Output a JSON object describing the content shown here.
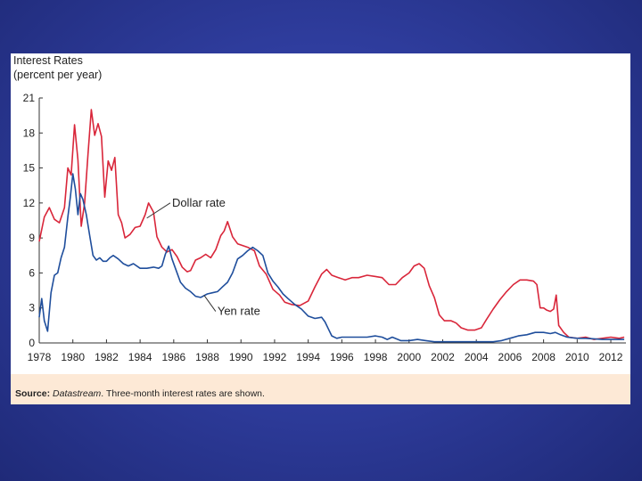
{
  "chart_data": {
    "type": "line",
    "title_lines": [
      "Interest Rates",
      "(percent per year)"
    ],
    "xlim": [
      1978,
      2012.9
    ],
    "ylim": [
      0,
      21
    ],
    "x_ticks": [
      1978,
      1980,
      1982,
      1984,
      1986,
      1988,
      1990,
      1992,
      1994,
      1996,
      1998,
      2000,
      2002,
      2004,
      2006,
      2008,
      2010,
      2012
    ],
    "y_ticks": [
      0,
      3,
      6,
      9,
      12,
      15,
      18,
      21
    ],
    "series": [
      {
        "name": "Dollar rate",
        "color": "#d9263a",
        "points": [
          [
            1978.0,
            8.7
          ],
          [
            1978.3,
            10.8
          ],
          [
            1978.6,
            11.6
          ],
          [
            1978.9,
            10.6
          ],
          [
            1979.2,
            10.3
          ],
          [
            1979.5,
            11.6
          ],
          [
            1979.7,
            15.0
          ],
          [
            1979.9,
            14.4
          ],
          [
            1980.1,
            18.7
          ],
          [
            1980.3,
            15.7
          ],
          [
            1980.5,
            10.0
          ],
          [
            1980.7,
            12.0
          ],
          [
            1980.9,
            16.2
          ],
          [
            1981.1,
            20.0
          ],
          [
            1981.3,
            17.8
          ],
          [
            1981.5,
            18.8
          ],
          [
            1981.7,
            17.7
          ],
          [
            1981.9,
            12.5
          ],
          [
            1982.1,
            15.6
          ],
          [
            1982.3,
            14.8
          ],
          [
            1982.5,
            15.9
          ],
          [
            1982.7,
            11.0
          ],
          [
            1982.9,
            10.3
          ],
          [
            1983.1,
            9.0
          ],
          [
            1983.4,
            9.3
          ],
          [
            1983.7,
            9.9
          ],
          [
            1984.0,
            10.0
          ],
          [
            1984.3,
            11.0
          ],
          [
            1984.5,
            12.0
          ],
          [
            1984.8,
            11.2
          ],
          [
            1985.0,
            9.1
          ],
          [
            1985.3,
            8.2
          ],
          [
            1985.6,
            7.8
          ],
          [
            1985.9,
            8.0
          ],
          [
            1986.2,
            7.4
          ],
          [
            1986.5,
            6.5
          ],
          [
            1986.8,
            6.1
          ],
          [
            1987.0,
            6.2
          ],
          [
            1987.3,
            7.1
          ],
          [
            1987.6,
            7.3
          ],
          [
            1987.9,
            7.6
          ],
          [
            1988.2,
            7.3
          ],
          [
            1988.5,
            8.0
          ],
          [
            1988.8,
            9.2
          ],
          [
            1989.0,
            9.6
          ],
          [
            1989.2,
            10.4
          ],
          [
            1989.5,
            9.1
          ],
          [
            1989.8,
            8.5
          ],
          [
            1990.0,
            8.4
          ],
          [
            1990.4,
            8.2
          ],
          [
            1990.8,
            7.9
          ],
          [
            1991.1,
            6.6
          ],
          [
            1991.5,
            5.9
          ],
          [
            1991.9,
            4.6
          ],
          [
            1992.3,
            4.1
          ],
          [
            1992.6,
            3.5
          ],
          [
            1993.0,
            3.3
          ],
          [
            1993.5,
            3.2
          ],
          [
            1994.0,
            3.6
          ],
          [
            1994.4,
            4.8
          ],
          [
            1994.8,
            5.9
          ],
          [
            1995.1,
            6.3
          ],
          [
            1995.4,
            5.8
          ],
          [
            1995.8,
            5.6
          ],
          [
            1996.2,
            5.4
          ],
          [
            1996.6,
            5.6
          ],
          [
            1997.0,
            5.6
          ],
          [
            1997.5,
            5.8
          ],
          [
            1998.0,
            5.7
          ],
          [
            1998.4,
            5.6
          ],
          [
            1998.8,
            5.0
          ],
          [
            1999.2,
            5.0
          ],
          [
            1999.6,
            5.6
          ],
          [
            2000.0,
            6.0
          ],
          [
            2000.3,
            6.6
          ],
          [
            2000.6,
            6.8
          ],
          [
            2000.9,
            6.4
          ],
          [
            2001.2,
            4.9
          ],
          [
            2001.5,
            3.9
          ],
          [
            2001.8,
            2.4
          ],
          [
            2002.1,
            1.9
          ],
          [
            2002.5,
            1.9
          ],
          [
            2002.8,
            1.7
          ],
          [
            2003.1,
            1.3
          ],
          [
            2003.5,
            1.1
          ],
          [
            2003.9,
            1.1
          ],
          [
            2004.3,
            1.3
          ],
          [
            2004.6,
            2.0
          ],
          [
            2005.0,
            2.9
          ],
          [
            2005.4,
            3.7
          ],
          [
            2005.8,
            4.4
          ],
          [
            2006.2,
            5.0
          ],
          [
            2006.6,
            5.4
          ],
          [
            2007.0,
            5.4
          ],
          [
            2007.4,
            5.3
          ],
          [
            2007.6,
            5.0
          ],
          [
            2007.8,
            3.0
          ],
          [
            2008.0,
            3.0
          ],
          [
            2008.2,
            2.8
          ],
          [
            2008.4,
            2.7
          ],
          [
            2008.6,
            2.9
          ],
          [
            2008.75,
            4.1
          ],
          [
            2008.9,
            1.5
          ],
          [
            2009.2,
            0.9
          ],
          [
            2009.5,
            0.5
          ],
          [
            2010.0,
            0.4
          ],
          [
            2010.5,
            0.5
          ],
          [
            2011.0,
            0.3
          ],
          [
            2011.5,
            0.4
          ],
          [
            2012.0,
            0.5
          ],
          [
            2012.5,
            0.4
          ],
          [
            2012.8,
            0.5
          ]
        ]
      },
      {
        "name": "Yen rate",
        "color": "#1f4e9c",
        "points": [
          [
            1978.0,
            2.2
          ],
          [
            1978.15,
            3.8
          ],
          [
            1978.3,
            1.9
          ],
          [
            1978.5,
            1.0
          ],
          [
            1978.7,
            4.3
          ],
          [
            1978.9,
            5.8
          ],
          [
            1979.1,
            6.0
          ],
          [
            1979.3,
            7.3
          ],
          [
            1979.5,
            8.2
          ],
          [
            1979.7,
            10.8
          ],
          [
            1979.85,
            12.5
          ],
          [
            1980.0,
            14.5
          ],
          [
            1980.15,
            13.2
          ],
          [
            1980.3,
            11.0
          ],
          [
            1980.45,
            12.8
          ],
          [
            1980.6,
            12.3
          ],
          [
            1980.8,
            11.0
          ],
          [
            1981.0,
            9.2
          ],
          [
            1981.2,
            7.5
          ],
          [
            1981.4,
            7.1
          ],
          [
            1981.6,
            7.3
          ],
          [
            1981.8,
            7.0
          ],
          [
            1982.0,
            7.0
          ],
          [
            1982.2,
            7.3
          ],
          [
            1982.4,
            7.5
          ],
          [
            1982.7,
            7.2
          ],
          [
            1983.0,
            6.8
          ],
          [
            1983.3,
            6.6
          ],
          [
            1983.6,
            6.8
          ],
          [
            1984.0,
            6.4
          ],
          [
            1984.4,
            6.4
          ],
          [
            1984.8,
            6.5
          ],
          [
            1985.1,
            6.4
          ],
          [
            1985.3,
            6.6
          ],
          [
            1985.5,
            7.6
          ],
          [
            1985.7,
            8.3
          ],
          [
            1985.9,
            7.2
          ],
          [
            1986.1,
            6.4
          ],
          [
            1986.4,
            5.2
          ],
          [
            1986.7,
            4.7
          ],
          [
            1987.0,
            4.4
          ],
          [
            1987.3,
            4.0
          ],
          [
            1987.6,
            3.9
          ],
          [
            1988.0,
            4.2
          ],
          [
            1988.3,
            4.3
          ],
          [
            1988.6,
            4.4
          ],
          [
            1988.9,
            4.8
          ],
          [
            1989.2,
            5.2
          ],
          [
            1989.5,
            6.0
          ],
          [
            1989.8,
            7.2
          ],
          [
            1990.1,
            7.5
          ],
          [
            1990.4,
            7.9
          ],
          [
            1990.7,
            8.2
          ],
          [
            1991.0,
            7.9
          ],
          [
            1991.3,
            7.5
          ],
          [
            1991.6,
            6.0
          ],
          [
            1991.9,
            5.3
          ],
          [
            1992.2,
            4.8
          ],
          [
            1992.5,
            4.2
          ],
          [
            1992.8,
            3.8
          ],
          [
            1993.2,
            3.3
          ],
          [
            1993.6,
            2.9
          ],
          [
            1994.0,
            2.3
          ],
          [
            1994.4,
            2.1
          ],
          [
            1994.8,
            2.2
          ],
          [
            1995.0,
            1.8
          ],
          [
            1995.2,
            1.2
          ],
          [
            1995.4,
            0.6
          ],
          [
            1995.7,
            0.4
          ],
          [
            1996.0,
            0.5
          ],
          [
            1996.5,
            0.5
          ],
          [
            1997.0,
            0.5
          ],
          [
            1997.5,
            0.5
          ],
          [
            1998.0,
            0.6
          ],
          [
            1998.4,
            0.5
          ],
          [
            1998.7,
            0.3
          ],
          [
            1999.0,
            0.5
          ],
          [
            1999.5,
            0.2
          ],
          [
            2000.0,
            0.2
          ],
          [
            2000.5,
            0.3
          ],
          [
            2001.0,
            0.2
          ],
          [
            2001.5,
            0.1
          ],
          [
            2002.0,
            0.1
          ],
          [
            2003.0,
            0.1
          ],
          [
            2004.0,
            0.1
          ],
          [
            2005.0,
            0.1
          ],
          [
            2005.5,
            0.2
          ],
          [
            2006.0,
            0.4
          ],
          [
            2006.5,
            0.6
          ],
          [
            2007.0,
            0.7
          ],
          [
            2007.5,
            0.9
          ],
          [
            2008.0,
            0.9
          ],
          [
            2008.4,
            0.8
          ],
          [
            2008.7,
            0.9
          ],
          [
            2009.0,
            0.7
          ],
          [
            2009.4,
            0.5
          ],
          [
            2010.0,
            0.4
          ],
          [
            2010.5,
            0.4
          ],
          [
            2011.0,
            0.35
          ],
          [
            2011.5,
            0.3
          ],
          [
            2012.0,
            0.3
          ],
          [
            2012.8,
            0.3
          ]
        ]
      }
    ],
    "annotations": [
      {
        "text": "Dollar rate",
        "x": 1985.9,
        "y": 11.7,
        "arrow_to": [
          1984.4,
          10.7
        ]
      },
      {
        "text": "Yen rate",
        "x": 1988.6,
        "y": 2.4,
        "arrow_to": [
          1987.8,
          4.1
        ]
      }
    ],
    "source_label": "Source:",
    "source_name": "Datastream",
    "source_note": ". Three-month interest rates are shown."
  }
}
